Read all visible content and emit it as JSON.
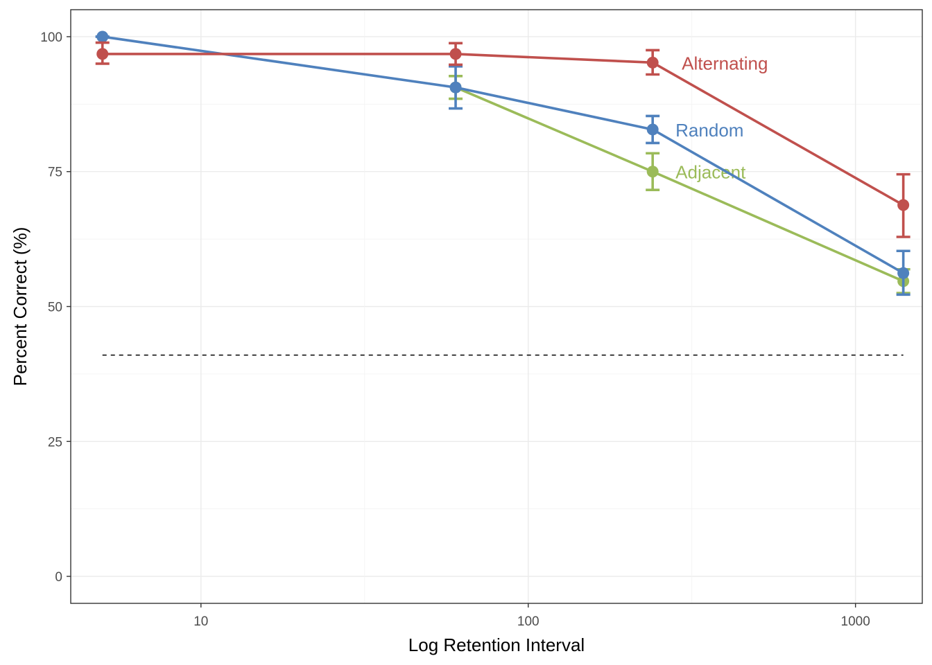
{
  "chart_data": {
    "type": "line",
    "title": "",
    "xlabel": "Log Retention Interval",
    "ylabel": "Percent Correct (%)",
    "x_scale": "log10",
    "xlim": [
      4,
      1600
    ],
    "ylim": [
      -5,
      105
    ],
    "x_ticks": [
      10,
      100,
      1000
    ],
    "x_tick_labels": [
      "10",
      "100",
      "1000"
    ],
    "y_ticks": [
      0,
      25,
      50,
      75,
      100
    ],
    "y_tick_labels": [
      "0",
      "25",
      "50",
      "75",
      "100"
    ],
    "grid": true,
    "legend": "none",
    "reference_line": {
      "y": 41,
      "x_range": [
        5,
        1400
      ],
      "style": "dashed",
      "color": "#000000"
    },
    "series": [
      {
        "name": "Alternating",
        "color": "#c0504d",
        "x": [
          5,
          60,
          240,
          1400
        ],
        "y": [
          96.8,
          96.8,
          95.2,
          68.8
        ],
        "error_low": [
          95.0,
          94.8,
          93.0,
          62.9
        ],
        "error_high": [
          98.9,
          98.8,
          97.5,
          74.5
        ]
      },
      {
        "name": "Random",
        "color": "#4f81bd",
        "x": [
          5,
          60,
          240,
          1400
        ],
        "y": [
          100,
          90.6,
          82.8,
          56.2
        ],
        "error_low": [
          100,
          86.7,
          80.3,
          52.2
        ],
        "error_high": [
          100,
          94.5,
          85.3,
          60.3
        ]
      },
      {
        "name": "Adjacent",
        "color": "#9bbb59",
        "x": [
          60,
          240,
          1400
        ],
        "y": [
          90.6,
          75.0,
          54.7
        ],
        "error_low": [
          88.5,
          71.6,
          52.5
        ],
        "error_high": [
          92.7,
          78.4,
          56.9
        ]
      }
    ]
  }
}
